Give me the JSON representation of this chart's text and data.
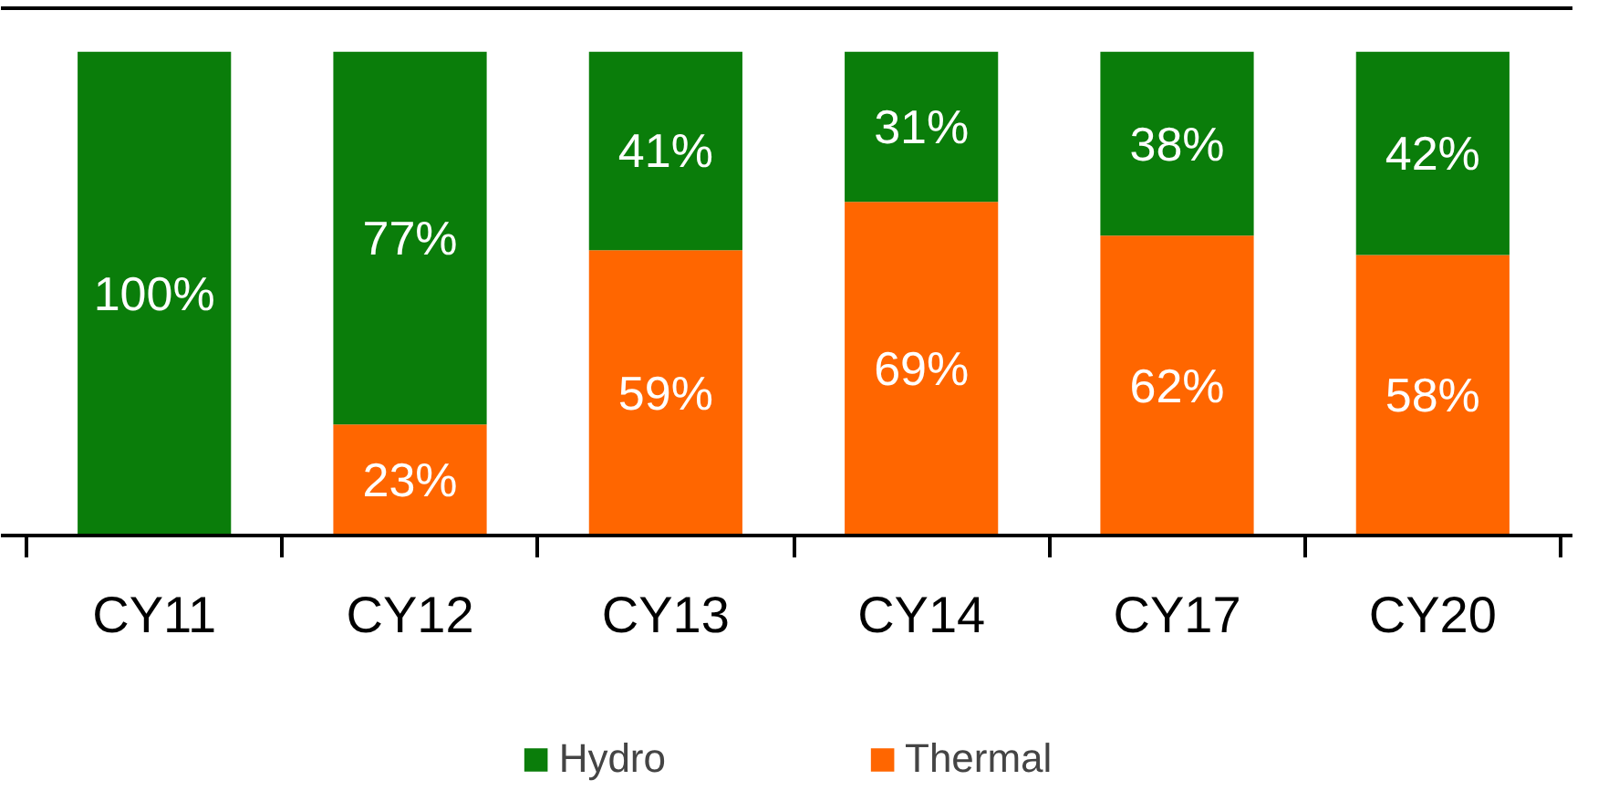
{
  "chart_data": {
    "type": "bar",
    "stacked": true,
    "categories": [
      "CY11",
      "CY12",
      "CY13",
      "CY14",
      "CY17",
      "CY20"
    ],
    "series": [
      {
        "name": "Thermal",
        "color": "#ff6600",
        "values": [
          0,
          23,
          59,
          69,
          62,
          58
        ],
        "value_labels": [
          null,
          "23%",
          "59%",
          "69%",
          "62%",
          "58%"
        ]
      },
      {
        "name": "Hydro",
        "color": "#0a7d0a",
        "values": [
          100,
          77,
          41,
          31,
          38,
          42
        ],
        "value_labels": [
          "100%",
          "77%",
          "41%",
          "31%",
          "38%",
          "42%"
        ]
      }
    ],
    "legend": "bottom"
  }
}
